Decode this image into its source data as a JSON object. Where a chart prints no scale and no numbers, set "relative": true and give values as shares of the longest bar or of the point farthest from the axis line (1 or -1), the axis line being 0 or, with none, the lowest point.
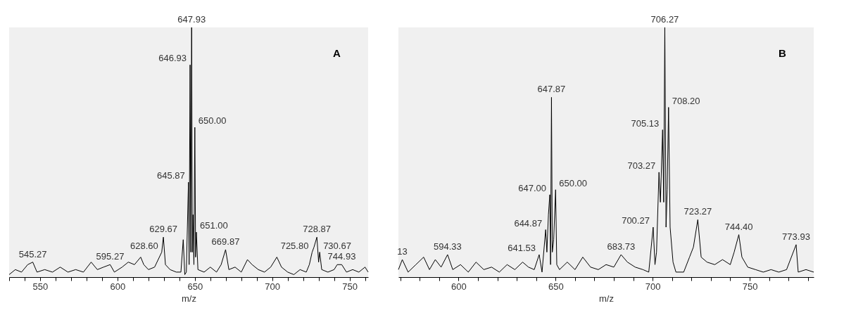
{
  "chart_data": [
    {
      "type": "line",
      "xlabel": "m/z",
      "relative": true,
      "xlim": [
        530,
        762
      ],
      "xticks": [
        {
          "value": 530,
          "label": null
        },
        {
          "value": 540,
          "label": null
        },
        550,
        {
          "value": 560,
          "label": null
        },
        {
          "value": 570,
          "label": null
        },
        {
          "value": 580,
          "label": null
        },
        {
          "value": 590,
          "label": null
        },
        600,
        {
          "value": 610,
          "label": null
        },
        {
          "value": 620,
          "label": null
        },
        {
          "value": 630,
          "label": null
        },
        {
          "value": 640,
          "label": null
        },
        650,
        {
          "value": 660,
          "label": null
        },
        {
          "value": 670,
          "label": null
        },
        {
          "value": 680,
          "label": null
        },
        {
          "value": 690,
          "label": null
        },
        700,
        {
          "value": 710,
          "label": null
        },
        {
          "value": 720,
          "label": null
        },
        {
          "value": 730,
          "label": null
        },
        {
          "value": 740,
          "label": null
        },
        750,
        {
          "value": 760,
          "label": null
        }
      ],
      "series": [
        {
          "color": "#000000",
          "x": [
            530,
            534,
            538,
            542,
            545.27,
            548,
            553,
            558,
            563,
            568,
            573,
            578,
            583,
            587,
            591,
            595.27,
            598,
            603,
            607,
            611,
            615,
            617,
            620,
            624,
            628.6,
            629.67,
            631,
            634,
            638,
            641,
            642.5,
            643.5,
            644.5,
            645.87,
            646.3,
            646.93,
            647.4,
            647.93,
            648.4,
            648.8,
            649.4,
            650.0,
            650.5,
            651.0,
            652,
            656,
            660,
            664,
            667,
            669.87,
            672,
            676,
            680,
            684,
            687,
            691,
            695,
            699,
            703,
            706,
            710,
            714,
            718,
            722,
            724,
            725.8,
            727,
            728.87,
            730,
            730.67,
            732,
            736,
            740,
            742,
            744.93,
            748,
            752,
            756,
            760,
            762
          ],
          "values": [
            0.01,
            0.03,
            0.02,
            0.05,
            0.06,
            0.02,
            0.03,
            0.02,
            0.04,
            0.02,
            0.03,
            0.02,
            0.06,
            0.03,
            0.04,
            0.05,
            0.02,
            0.04,
            0.06,
            0.05,
            0.08,
            0.05,
            0.03,
            0.04,
            0.1,
            0.16,
            0.05,
            0.03,
            0.02,
            0.02,
            0.15,
            0.01,
            0.02,
            0.38,
            0.05,
            0.85,
            0.1,
            1,
            0.1,
            0.25,
            0.05,
            0.6,
            0.08,
            0.18,
            0.03,
            0.02,
            0.04,
            0.02,
            0.05,
            0.11,
            0.03,
            0.04,
            0.02,
            0.07,
            0.05,
            0.03,
            0.02,
            0.04,
            0.08,
            0.04,
            0.02,
            0.01,
            0.03,
            0.02,
            0.05,
            0.1,
            0.12,
            0.16,
            0.06,
            0.1,
            0.03,
            0.02,
            0.03,
            0.05,
            0.05,
            0.02,
            0.03,
            0.02,
            0.04,
            0.02
          ]
        }
      ],
      "annotations": [
        "A",
        {
          "text": "545.27",
          "x": 545.27,
          "y": 0.06
        },
        {
          "text": "595.27",
          "x": 595.27,
          "y": 0.05
        },
        {
          "text": "628.60",
          "x": 628.6,
          "y": 0.1
        },
        {
          "text": "629.67",
          "x": 629.67,
          "y": 0.16
        },
        {
          "text": "645.87",
          "x": 645.87,
          "y": 0.38
        },
        {
          "text": "646.93",
          "x": 646.93,
          "y": 0.85
        },
        {
          "text": "647.93",
          "x": 647.93,
          "y": 1
        },
        {
          "text": "650.00",
          "x": 650.0,
          "y": 0.6
        },
        {
          "text": "651.00",
          "x": 651.0,
          "y": 0.18
        },
        {
          "text": "669.87",
          "x": 669.87,
          "y": 0.11
        },
        {
          "text": "725.80",
          "x": 725.8,
          "y": 0.1
        },
        {
          "text": "728.87",
          "x": 728.87,
          "y": 0.16
        },
        {
          "text": "730.67",
          "x": 730.67,
          "y": 0.1
        },
        {
          "text": "744.93",
          "x": 744.93,
          "y": 0.05
        }
      ]
    },
    {
      "type": "line",
      "xlabel": "m/z",
      "relative": true,
      "xlim": [
        569,
        783
      ],
      "xticks": [
        {
          "value": 570,
          "label": null
        },
        {
          "value": 580,
          "label": null
        },
        {
          "value": 590,
          "label": null
        },
        600,
        {
          "value": 610,
          "label": null
        },
        {
          "value": 620,
          "label": null
        },
        {
          "value": 630,
          "label": null
        },
        {
          "value": 640,
          "label": null
        },
        650,
        {
          "value": 660,
          "label": null
        },
        {
          "value": 670,
          "label": null
        },
        {
          "value": 680,
          "label": null
        },
        {
          "value": 690,
          "label": null
        },
        700,
        {
          "value": 710,
          "label": null
        },
        {
          "value": 720,
          "label": null
        },
        {
          "value": 730,
          "label": null
        },
        {
          "value": 740,
          "label": null
        },
        750,
        {
          "value": 760,
          "label": null
        },
        {
          "value": 770,
          "label": null
        },
        {
          "value": 780,
          "label": null
        }
      ],
      "series": [
        {
          "color": "#000000",
          "x": [
            569,
            571,
            574,
            578,
            582,
            585,
            588,
            591,
            594.33,
            597,
            601,
            605,
            609,
            613,
            617,
            621,
            625,
            629,
            633,
            636,
            639,
            641.53,
            643,
            644.87,
            645.5,
            646.3,
            647.0,
            647.4,
            647.87,
            648.3,
            649,
            650.0,
            650.6,
            652,
            656,
            660,
            664,
            668,
            672,
            676,
            680,
            683.73,
            687,
            691,
            695,
            698,
            700.27,
            701.2,
            702,
            703.27,
            704,
            705.13,
            705.7,
            706.27,
            706.9,
            707.5,
            708.2,
            709,
            710.5,
            712,
            716,
            719,
            721,
            723.27,
            725,
            728,
            732,
            736,
            740,
            742,
            744.4,
            746,
            749,
            753,
            757,
            761,
            765,
            769,
            773.93,
            775,
            779,
            783
          ],
          "values": [
            0.03,
            0.07,
            0.02,
            0.05,
            0.08,
            0.03,
            0.07,
            0.04,
            0.09,
            0.03,
            0.05,
            0.02,
            0.06,
            0.03,
            0.04,
            0.02,
            0.05,
            0.03,
            0.06,
            0.04,
            0.03,
            0.09,
            0.02,
            0.19,
            0.1,
            0.25,
            0.33,
            0.05,
            0.72,
            0.1,
            0.15,
            0.35,
            0.05,
            0.03,
            0.06,
            0.03,
            0.08,
            0.04,
            0.03,
            0.05,
            0.04,
            0.09,
            0.06,
            0.04,
            0.03,
            0.02,
            0.2,
            0.05,
            0.1,
            0.42,
            0.3,
            0.59,
            0.3,
            1,
            0.2,
            0.35,
            0.68,
            0.2,
            0.06,
            0.02,
            0.02,
            0.08,
            0.12,
            0.23,
            0.08,
            0.06,
            0.05,
            0.07,
            0.05,
            0.1,
            0.17,
            0.08,
            0.04,
            0.03,
            0.02,
            0.03,
            0.02,
            0.03,
            0.13,
            0.02,
            0.03,
            0.02
          ]
        }
      ],
      "annotations": [
        "B",
        {
          "text": "13",
          "x": 571,
          "y": 0.07
        },
        {
          "text": "594.33",
          "x": 594.33,
          "y": 0.09
        },
        {
          "text": "641.53",
          "x": 641.53,
          "y": 0.09
        },
        {
          "text": "644.87",
          "x": 644.87,
          "y": 0.19
        },
        {
          "text": "647.00",
          "x": 647.0,
          "y": 0.33
        },
        {
          "text": "647.87",
          "x": 647.87,
          "y": 0.72
        },
        {
          "text": "650.00",
          "x": 650.0,
          "y": 0.35
        },
        {
          "text": "683.73",
          "x": 683.73,
          "y": 0.09
        },
        {
          "text": "700.27",
          "x": 700.27,
          "y": 0.2
        },
        {
          "text": "703.27",
          "x": 703.27,
          "y": 0.42
        },
        {
          "text": "705.13",
          "x": 705.13,
          "y": 0.59
        },
        {
          "text": "706.27",
          "x": 706.27,
          "y": 1
        },
        {
          "text": "708.20",
          "x": 708.2,
          "y": 0.68
        },
        {
          "text": "723.27",
          "x": 723.27,
          "y": 0.23
        },
        {
          "text": "744.40",
          "x": 744.4,
          "y": 0.17
        },
        {
          "text": "773.93",
          "x": 773.93,
          "y": 0.13
        }
      ]
    }
  ]
}
